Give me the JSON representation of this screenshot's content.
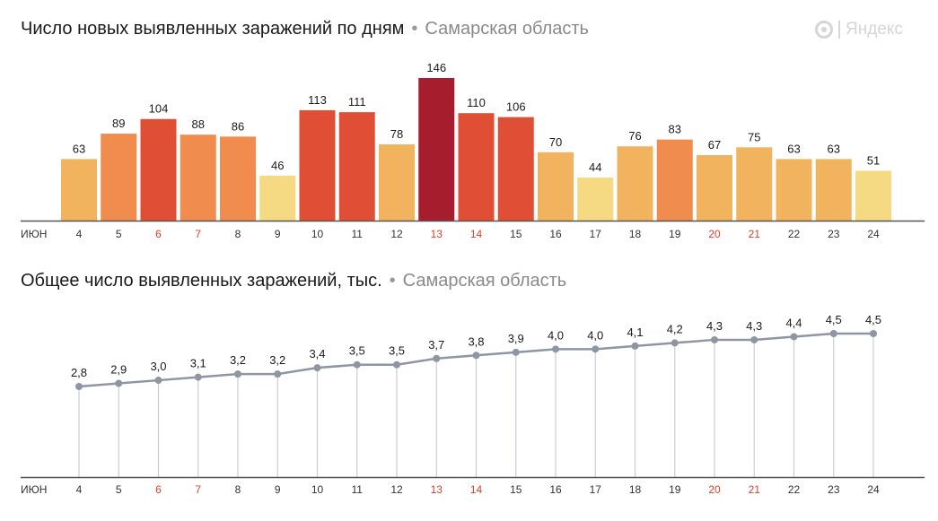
{
  "header": {
    "chart1_title": "Число новых выявленных заражений по дням",
    "chart2_title": "Общее число выявленных заражений, тыс.",
    "separator": "•",
    "region": "Самарская область",
    "logo_text": "Яндекс"
  },
  "colors": {
    "weekend_label": "#d9412b",
    "weekday_label": "#333333",
    "line": "#8f96a3",
    "stem": "#c9cdd3",
    "axis": "#555555"
  },
  "chart_data": [
    {
      "type": "bar",
      "title": "Число новых выявленных заражений по дням",
      "month_label": "ИЮН",
      "categories": [
        "4",
        "5",
        "6",
        "7",
        "8",
        "9",
        "10",
        "11",
        "12",
        "13",
        "14",
        "15",
        "16",
        "17",
        "18",
        "19",
        "20",
        "21",
        "22",
        "23",
        "24"
      ],
      "values": [
        63,
        89,
        104,
        88,
        86,
        46,
        113,
        111,
        78,
        146,
        110,
        106,
        70,
        44,
        76,
        83,
        67,
        75,
        63,
        63,
        51
      ],
      "weekend": [
        false,
        false,
        true,
        true,
        false,
        false,
        false,
        false,
        false,
        true,
        true,
        false,
        false,
        false,
        false,
        false,
        true,
        true,
        false,
        false,
        false
      ],
      "value_labels": [
        "63",
        "89",
        "104",
        "88",
        "86",
        "46",
        "113",
        "111",
        "78",
        "146",
        "110",
        "106",
        "70",
        "44",
        "76",
        "83",
        "67",
        "75",
        "63",
        "63",
        "51"
      ],
      "ylim": [
        0,
        146
      ]
    },
    {
      "type": "line",
      "title": "Общее число выявленных заражений, тыс.",
      "month_label": "ИЮН",
      "categories": [
        "4",
        "5",
        "6",
        "7",
        "8",
        "9",
        "10",
        "11",
        "12",
        "13",
        "14",
        "15",
        "16",
        "17",
        "18",
        "19",
        "20",
        "21",
        "22",
        "23",
        "24"
      ],
      "values": [
        2.8,
        2.9,
        3.0,
        3.1,
        3.2,
        3.2,
        3.4,
        3.5,
        3.5,
        3.7,
        3.8,
        3.9,
        4.0,
        4.0,
        4.1,
        4.2,
        4.3,
        4.3,
        4.4,
        4.5,
        4.5
      ],
      "value_labels": [
        "2,8",
        "2,9",
        "3,0",
        "3,1",
        "3,2",
        "3,2",
        "3,4",
        "3,5",
        "3,5",
        "3,7",
        "3,8",
        "3,9",
        "4,0",
        "4,0",
        "4,1",
        "4,2",
        "4,3",
        "4,3",
        "4,4",
        "4,5",
        "4,5"
      ],
      "weekend": [
        false,
        false,
        true,
        true,
        false,
        false,
        false,
        false,
        false,
        true,
        true,
        false,
        false,
        false,
        false,
        false,
        true,
        true,
        false,
        false,
        false
      ]
    }
  ]
}
